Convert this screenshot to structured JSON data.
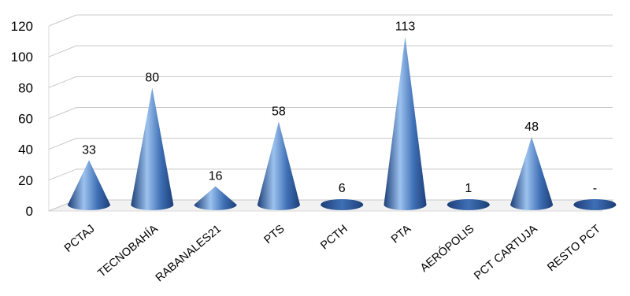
{
  "chart_data": {
    "type": "bar",
    "style": "3d-cone",
    "title": "",
    "xlabel": "",
    "ylabel": "",
    "ylim": [
      0,
      120
    ],
    "yticks": [
      0,
      20,
      40,
      60,
      80,
      100,
      120
    ],
    "grid": true,
    "categories": [
      "PCTAJ",
      "TECNOBAHÍA",
      "RABANALES21",
      "PTS",
      "PCTH",
      "PTA",
      "AERÓPOLIS",
      "PCT CARTUJA",
      "RESTO PCT"
    ],
    "values": [
      33,
      80,
      16,
      58,
      6,
      113,
      1,
      48,
      0
    ],
    "data_labels": [
      "33",
      "80",
      "16",
      "58",
      "6",
      "113",
      "1",
      "48",
      "-"
    ],
    "colors": {
      "cone": "#3f6fb5",
      "cone_light": "#9cc2ee",
      "cone_dark": "#1d3f78",
      "grid": "#c8c8c8",
      "wall": "#d9d9d9"
    }
  }
}
